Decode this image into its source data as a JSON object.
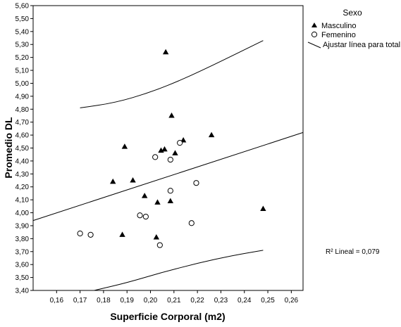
{
  "chart_data": {
    "type": "scatter",
    "xlabel": "Superficie Corporal (m2)",
    "ylabel": "Promedio DL",
    "xlim": [
      0.15,
      0.265
    ],
    "ylim": [
      3.4,
      5.6
    ],
    "x_ticks": [
      0.16,
      0.17,
      0.18,
      0.19,
      0.2,
      0.21,
      0.22,
      0.23,
      0.24,
      0.25,
      0.26
    ],
    "x_tick_labels": [
      "0,16",
      "0,17",
      "0,18",
      "0,19",
      "0,20",
      "0,21",
      "0,22",
      "0,23",
      "0,24",
      "0,25",
      "0,26"
    ],
    "y_ticks": [
      3.4,
      3.5,
      3.6,
      3.7,
      3.8,
      3.9,
      4.0,
      4.1,
      4.2,
      4.3,
      4.4,
      4.5,
      4.6,
      4.7,
      4.8,
      4.9,
      5.0,
      5.1,
      5.2,
      5.3,
      5.4,
      5.5,
      5.6
    ],
    "y_tick_labels": [
      "3,40",
      "3,50",
      "3,60",
      "3,70",
      "3,80",
      "3,90",
      "4,00",
      "4,10",
      "4,20",
      "4,30",
      "4,40",
      "4,50",
      "4,60",
      "4,70",
      "4,80",
      "4,90",
      "5,00",
      "5,10",
      "5,20",
      "5,30",
      "5,40",
      "5,50",
      "5,60"
    ],
    "grid": false,
    "legend": {
      "title": "Sexo",
      "placement": "top-right",
      "entries": [
        {
          "label": "Masculino",
          "marker": "triangle-filled"
        },
        {
          "label": "Femenino",
          "marker": "circle-open"
        },
        {
          "label": "Ajustar línea para total",
          "marker": "line"
        }
      ]
    },
    "annotation": "R² Lineal = 0,079",
    "series": [
      {
        "name": "Masculino",
        "marker": "triangle-filled",
        "points": [
          [
            0.2065,
            5.24
          ],
          [
            0.209,
            4.75
          ],
          [
            0.214,
            4.56
          ],
          [
            0.226,
            4.6
          ],
          [
            0.189,
            4.51
          ],
          [
            0.2045,
            4.48
          ],
          [
            0.206,
            4.49
          ],
          [
            0.2105,
            4.46
          ],
          [
            0.184,
            4.24
          ],
          [
            0.1925,
            4.25
          ],
          [
            0.1975,
            4.13
          ],
          [
            0.203,
            4.08
          ],
          [
            0.2085,
            4.09
          ],
          [
            0.248,
            4.03
          ],
          [
            0.188,
            3.83
          ],
          [
            0.2025,
            3.81
          ]
        ]
      },
      {
        "name": "Femenino",
        "marker": "circle-open",
        "points": [
          [
            0.2125,
            4.54
          ],
          [
            0.202,
            4.43
          ],
          [
            0.2085,
            4.41
          ],
          [
            0.2085,
            4.17
          ],
          [
            0.2195,
            4.23
          ],
          [
            0.1955,
            3.98
          ],
          [
            0.198,
            3.97
          ],
          [
            0.2175,
            3.92
          ],
          [
            0.17,
            3.84
          ],
          [
            0.1745,
            3.83
          ],
          [
            0.204,
            3.75
          ]
        ]
      }
    ],
    "fit_line": {
      "points": [
        [
          0.15,
          3.94
        ],
        [
          0.265,
          4.62
        ]
      ]
    },
    "ci_upper": {
      "points": [
        [
          0.17,
          4.81
        ],
        [
          0.185,
          4.85
        ],
        [
          0.2,
          4.93
        ],
        [
          0.215,
          5.04
        ],
        [
          0.23,
          5.17
        ],
        [
          0.248,
          5.33
        ]
      ]
    },
    "ci_lower": {
      "points": [
        [
          0.176,
          3.4
        ],
        [
          0.19,
          3.46
        ],
        [
          0.205,
          3.54
        ],
        [
          0.22,
          3.61
        ],
        [
          0.235,
          3.67
        ],
        [
          0.248,
          3.71
        ]
      ]
    }
  }
}
